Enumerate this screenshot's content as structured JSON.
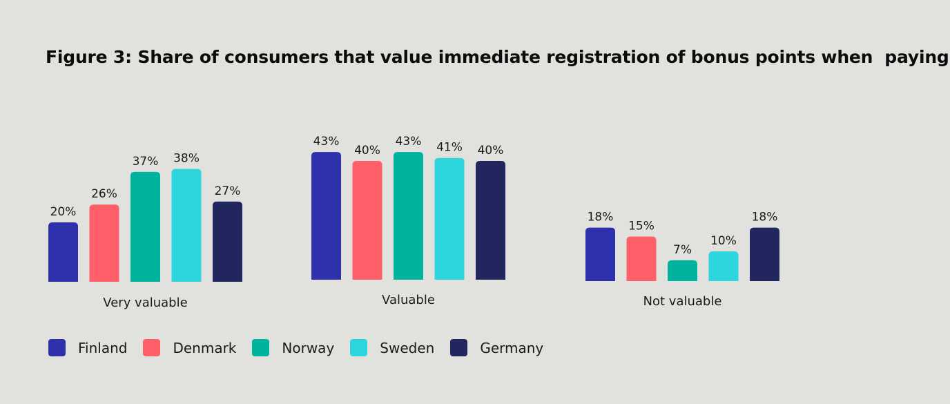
{
  "title": "Figure 3: Share of consumers that value immediate registration of bonus points when  paying",
  "chart_data": {
    "type": "bar",
    "title": "Figure 3: Share of consumers that value immediate registration of bonus points when  paying",
    "categories": [
      "Very valuable",
      "Valuable",
      "Not valuable"
    ],
    "value_suffix": "%",
    "series": [
      {
        "name": "Finland",
        "color": "#2e31ab",
        "values": [
          20,
          43,
          18
        ]
      },
      {
        "name": "Denmark",
        "color": "#ff5f68",
        "values": [
          26,
          40,
          15
        ]
      },
      {
        "name": "Norway",
        "color": "#00b39e",
        "values": [
          37,
          43,
          7
        ]
      },
      {
        "name": "Sweden",
        "color": "#2dd5dc",
        "values": [
          38,
          41,
          10
        ]
      },
      {
        "name": "Germany",
        "color": "#21265e",
        "values": [
          27,
          40,
          18
        ]
      }
    ],
    "legend_position": "bottom-left",
    "grid": false,
    "axes_visible": false
  }
}
